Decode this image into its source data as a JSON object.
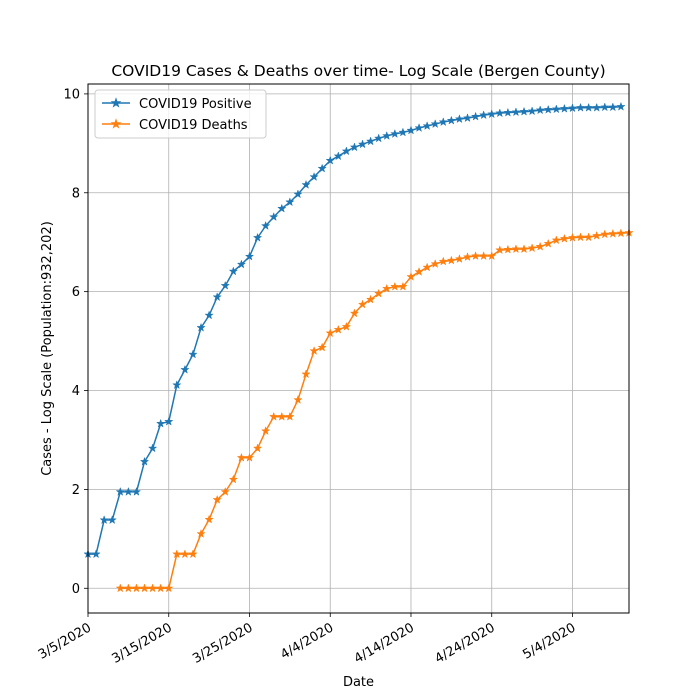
{
  "chart_data": {
    "type": "line",
    "title": "COVID19 Cases & Deaths over time- Log Scale (Bergen County)",
    "xlabel": "Date",
    "ylabel": "Cases - Log Scale (Population:932,202)",
    "ylim": [
      -0.5,
      10.2
    ],
    "yticks": [
      0,
      2,
      4,
      6,
      8,
      10
    ],
    "ytick_labels": [
      "0",
      "2",
      "4",
      "6",
      "8",
      "10"
    ],
    "x_start_date": "3/5/2020",
    "x_end_date": "5/11/2020",
    "xticks": [
      "3/5/2020",
      "3/15/2020",
      "3/25/2020",
      "4/4/2020",
      "4/14/2020",
      "4/24/2020",
      "5/4/2020"
    ],
    "grid": true,
    "legend_position": "top-left",
    "colors": {
      "positive": "#1f77b4",
      "deaths": "#ff7f0e",
      "grid": "#b0b0b0"
    },
    "series": [
      {
        "name": "COVID19 Positive",
        "color": "#1f77b4",
        "start_date": "3/5/2020",
        "values": [
          0.69,
          0.69,
          1.38,
          1.38,
          1.95,
          1.95,
          1.95,
          2.56,
          2.83,
          3.33,
          3.37,
          4.11,
          4.42,
          4.73,
          5.27,
          5.52,
          5.89,
          6.12,
          6.41,
          6.55,
          6.71,
          7.09,
          7.33,
          7.51,
          7.68,
          7.81,
          7.97,
          8.16,
          8.32,
          8.49,
          8.65,
          8.74,
          8.84,
          8.92,
          8.98,
          9.04,
          9.1,
          9.15,
          9.19,
          9.22,
          9.26,
          9.31,
          9.35,
          9.39,
          9.43,
          9.46,
          9.49,
          9.51,
          9.54,
          9.57,
          9.59,
          9.61,
          9.62,
          9.63,
          9.64,
          9.65,
          9.67,
          9.68,
          9.69,
          9.7,
          9.71,
          9.72,
          9.72,
          9.72,
          9.73,
          9.73,
          9.74
        ]
      },
      {
        "name": "COVID19 Deaths",
        "color": "#ff7f0e",
        "start_date": "3/9/2020",
        "values": [
          0,
          0,
          0,
          0,
          0,
          0,
          0,
          0.69,
          0.69,
          0.69,
          1.1,
          1.39,
          1.79,
          1.95,
          2.2,
          2.64,
          2.64,
          2.83,
          3.18,
          3.47,
          3.47,
          3.47,
          3.81,
          4.33,
          4.8,
          4.87,
          5.16,
          5.23,
          5.29,
          5.56,
          5.74,
          5.84,
          5.96,
          6.06,
          6.1,
          6.1,
          6.3,
          6.4,
          6.49,
          6.56,
          6.61,
          6.63,
          6.66,
          6.7,
          6.72,
          6.72,
          6.72,
          6.84,
          6.85,
          6.86,
          6.86,
          6.88,
          6.91,
          6.97,
          7.04,
          7.07,
          7.09,
          7.1,
          7.1,
          7.13,
          7.16,
          7.17,
          7.18,
          7.19
        ]
      }
    ]
  }
}
